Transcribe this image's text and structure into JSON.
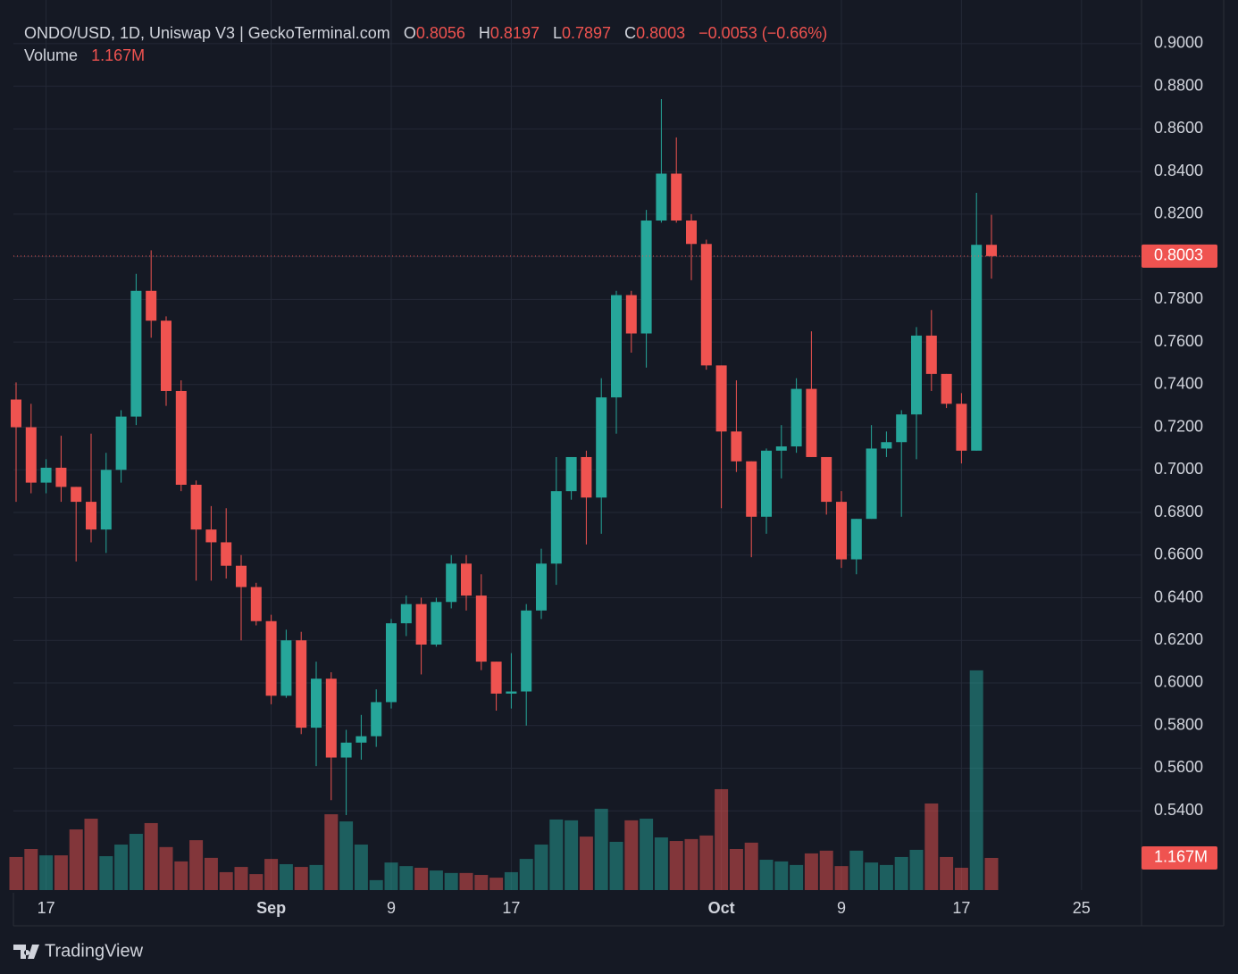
{
  "chart_data": {
    "type": "candlestick",
    "title": "ONDO/USD, 1D, Uniswap V3 | GeckoTerminal.com",
    "ohlc_labels": [
      "O",
      "H",
      "L",
      "C"
    ],
    "change": {
      "value": -0.0053,
      "label": "−0.0053 (−0.66%)"
    },
    "x": [
      "Aug 15",
      "Aug 16",
      "Aug 17",
      "Aug 18",
      "Aug 19",
      "Aug 20",
      "Aug 21",
      "Aug 22",
      "Aug 23",
      "Aug 24",
      "Aug 25",
      "Aug 26",
      "Aug 27",
      "Aug 28",
      "Aug 29",
      "Aug 30",
      "Aug 31",
      "Sep 1",
      "Sep 2",
      "Sep 3",
      "Sep 4",
      "Sep 5",
      "Sep 6",
      "Sep 7",
      "Sep 8",
      "Sep 9",
      "Sep 10",
      "Sep 11",
      "Sep 12",
      "Sep 13",
      "Sep 14",
      "Sep 15",
      "Sep 16",
      "Sep 17",
      "Sep 18",
      "Sep 19",
      "Sep 20",
      "Sep 21",
      "Sep 22",
      "Sep 23",
      "Sep 24",
      "Sep 25",
      "Sep 26",
      "Sep 27",
      "Sep 28",
      "Sep 29",
      "Sep 30",
      "Oct 1",
      "Oct 2",
      "Oct 3",
      "Oct 4",
      "Oct 5",
      "Oct 6",
      "Oct 7",
      "Oct 8",
      "Oct 9",
      "Oct 10",
      "Oct 11",
      "Oct 12",
      "Oct 13",
      "Oct 14",
      "Oct 15",
      "Oct 16",
      "Oct 17",
      "Oct 18",
      "Oct 19"
    ],
    "open": [
      0.733,
      0.72,
      0.694,
      0.701,
      0.692,
      0.685,
      0.672,
      0.7,
      0.725,
      0.784,
      0.77,
      0.737,
      0.693,
      0.672,
      0.666,
      0.655,
      0.645,
      0.629,
      0.594,
      0.62,
      0.579,
      0.602,
      0.565,
      0.572,
      0.575,
      0.591,
      0.628,
      0.637,
      0.618,
      0.638,
      0.656,
      0.641,
      0.61,
      0.595,
      0.596,
      0.634,
      0.656,
      0.69,
      0.706,
      0.687,
      0.734,
      0.782,
      0.764,
      0.817,
      0.839,
      0.817,
      0.806,
      0.749,
      0.718,
      0.704,
      0.678,
      0.709,
      0.711,
      0.738,
      0.706,
      0.685,
      0.658,
      0.677,
      0.71,
      0.713,
      0.726,
      0.763,
      0.745,
      0.731,
      0.709,
      0.8056
    ],
    "high": [
      0.741,
      0.731,
      0.705,
      0.716,
      0.692,
      0.717,
      0.708,
      0.728,
      0.792,
      0.803,
      0.772,
      0.742,
      0.695,
      0.683,
      0.682,
      0.66,
      0.647,
      0.632,
      0.625,
      0.624,
      0.61,
      0.605,
      0.578,
      0.585,
      0.597,
      0.63,
      0.641,
      0.64,
      0.64,
      0.66,
      0.66,
      0.651,
      0.61,
      0.614,
      0.637,
      0.663,
      0.706,
      0.706,
      0.709,
      0.743,
      0.784,
      0.784,
      0.822,
      0.874,
      0.856,
      0.82,
      0.808,
      0.749,
      0.742,
      0.704,
      0.71,
      0.721,
      0.743,
      0.765,
      0.706,
      0.69,
      0.677,
      0.721,
      0.718,
      0.728,
      0.767,
      0.775,
      0.745,
      0.736,
      0.83,
      0.8197
    ],
    "low": [
      0.685,
      0.689,
      0.689,
      0.685,
      0.657,
      0.666,
      0.661,
      0.694,
      0.721,
      0.762,
      0.73,
      0.69,
      0.648,
      0.648,
      0.649,
      0.62,
      0.627,
      0.59,
      0.593,
      0.576,
      0.561,
      0.545,
      0.538,
      0.564,
      0.57,
      0.588,
      0.622,
      0.604,
      0.617,
      0.635,
      0.634,
      0.606,
      0.587,
      0.588,
      0.58,
      0.63,
      0.646,
      0.686,
      0.665,
      0.67,
      0.717,
      0.755,
      0.748,
      0.816,
      0.816,
      0.789,
      0.747,
      0.682,
      0.699,
      0.659,
      0.67,
      0.696,
      0.708,
      0.706,
      0.679,
      0.654,
      0.651,
      0.677,
      0.706,
      0.678,
      0.705,
      0.737,
      0.729,
      0.703,
      0.709,
      0.7897
    ],
    "close": [
      0.72,
      0.694,
      0.701,
      0.692,
      0.685,
      0.672,
      0.7,
      0.725,
      0.784,
      0.77,
      0.737,
      0.693,
      0.672,
      0.666,
      0.655,
      0.645,
      0.629,
      0.594,
      0.62,
      0.579,
      0.602,
      0.565,
      0.572,
      0.575,
      0.591,
      0.628,
      0.637,
      0.618,
      0.638,
      0.656,
      0.641,
      0.61,
      0.595,
      0.596,
      0.634,
      0.656,
      0.69,
      0.706,
      0.687,
      0.734,
      0.782,
      0.764,
      0.817,
      0.839,
      0.817,
      0.806,
      0.749,
      0.718,
      0.704,
      0.678,
      0.709,
      0.711,
      0.738,
      0.706,
      0.685,
      0.658,
      0.677,
      0.71,
      0.713,
      0.726,
      0.763,
      0.745,
      0.731,
      0.709,
      0.8056,
      0.8003
    ],
    "up_color": "#26a69a",
    "down_color": "#ef5350",
    "volume": {
      "name": "Volume",
      "values": [
        1.2,
        1.49,
        1.26,
        1.26,
        2.2,
        2.59,
        1.23,
        1.65,
        2.04,
        2.43,
        1.56,
        1.04,
        1.81,
        1.17,
        0.65,
        0.84,
        0.58,
        1.13,
        0.94,
        0.84,
        0.91,
        2.75,
        2.49,
        1.65,
        0.36,
        1.0,
        0.87,
        0.81,
        0.71,
        0.62,
        0.62,
        0.55,
        0.45,
        0.65,
        1.13,
        1.65,
        2.56,
        2.53,
        1.94,
        2.95,
        1.75,
        2.53,
        2.59,
        1.91,
        1.78,
        1.85,
        1.98,
        3.66,
        1.49,
        1.72,
        1.1,
        1.04,
        0.91,
        1.33,
        1.43,
        0.87,
        1.43,
        1.0,
        0.91,
        1.2,
        1.46,
        3.14,
        1.2,
        0.81,
        7.97,
        1.167
      ],
      "value_labels": [
        null,
        null,
        null,
        null,
        null,
        null,
        null,
        null,
        null,
        null,
        null,
        null,
        null,
        null,
        null,
        null,
        null,
        null,
        null,
        null,
        null,
        null,
        null,
        null,
        null,
        null,
        null,
        null,
        null,
        null,
        null,
        null,
        null,
        null,
        null,
        null,
        null,
        null,
        null,
        null,
        null,
        null,
        null,
        null,
        null,
        null,
        null,
        null,
        null,
        null,
        null,
        null,
        null,
        null,
        null,
        null,
        null,
        null,
        null,
        null,
        null,
        null,
        null,
        null,
        null,
        "1.167M"
      ],
      "ylim": [
        0,
        31.8
      ]
    },
    "xlim": [
      "Aug 15",
      "Oct 29"
    ],
    "xticks": [
      {
        "value": "Aug 17",
        "label": "17"
      },
      {
        "value": "Sep 1",
        "label": "Sep"
      },
      {
        "value": "Sep 9",
        "label": "9"
      },
      {
        "value": "Sep 17",
        "label": "17"
      },
      {
        "value": "Oct 1",
        "label": "Oct"
      },
      {
        "value": "Oct 9",
        "label": "9"
      },
      {
        "value": "Oct 17",
        "label": "17"
      },
      {
        "value": "Oct 25",
        "label": "25"
      }
    ],
    "ylim": [
      0.5028,
      0.9142
    ],
    "yticks": [
      {
        "value": 0.9,
        "label": "0.9000"
      },
      {
        "value": 0.88,
        "label": "0.8800"
      },
      {
        "value": 0.86,
        "label": "0.8600"
      },
      {
        "value": 0.84,
        "label": "0.8400"
      },
      {
        "value": 0.82,
        "label": "0.8200"
      },
      {
        "value": 0.8,
        "label": "0.8000"
      },
      {
        "value": 0.78,
        "label": "0.7800"
      },
      {
        "value": 0.76,
        "label": "0.7600"
      },
      {
        "value": 0.74,
        "label": "0.7400"
      },
      {
        "value": 0.72,
        "label": "0.7200"
      },
      {
        "value": 0.7,
        "label": "0.7000"
      },
      {
        "value": 0.68,
        "label": "0.6800"
      },
      {
        "value": 0.66,
        "label": "0.6600"
      },
      {
        "value": 0.64,
        "label": "0.6400"
      },
      {
        "value": 0.62,
        "label": "0.6200"
      },
      {
        "value": 0.6,
        "label": "0.6000"
      },
      {
        "value": 0.58,
        "label": "0.5800"
      },
      {
        "value": 0.56,
        "label": "0.5600"
      },
      {
        "value": 0.54,
        "label": "0.5400"
      }
    ],
    "grid": true,
    "brand": "TradingView"
  }
}
